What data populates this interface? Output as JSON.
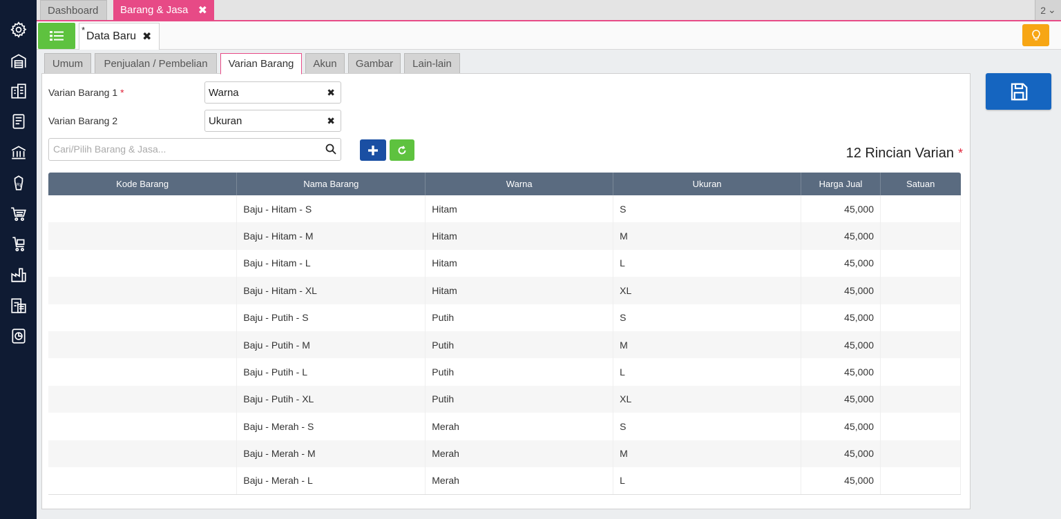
{
  "top_tabs": [
    {
      "label": "Dashboard"
    },
    {
      "label": "Barang & Jasa",
      "close": "✖"
    }
  ],
  "window_counter": {
    "label": "2",
    "chevron": "⌄"
  },
  "doc_tab": {
    "marker": "*",
    "label": "Data Baru",
    "close": "✖"
  },
  "form_tabs": [
    "Umum",
    "Penjualan / Pembelian",
    "Varian Barang",
    "Akun",
    "Gambar",
    "Lain-lain"
  ],
  "variant1": {
    "label": "Varian Barang 1",
    "required": "*",
    "value": "Warna",
    "clear": "✖"
  },
  "variant2": {
    "label": "Varian Barang 2",
    "value": "Ukuran",
    "clear": "✖"
  },
  "search": {
    "placeholder": "Cari/Pilih Barang & Jasa..."
  },
  "variant_count": {
    "label": "12 Rincian Varian",
    "required": "*"
  },
  "table": {
    "columns": [
      "Kode Barang",
      "Nama Barang",
      "Warna",
      "Ukuran",
      "Harga Jual",
      "Satuan"
    ],
    "rows": [
      [
        "",
        "Baju - Hitam - S",
        "Hitam",
        "S",
        "45,000",
        ""
      ],
      [
        "",
        "Baju - Hitam - M",
        "Hitam",
        "M",
        "45,000",
        ""
      ],
      [
        "",
        "Baju - Hitam - L",
        "Hitam",
        "L",
        "45,000",
        ""
      ],
      [
        "",
        "Baju - Hitam - XL",
        "Hitam",
        "XL",
        "45,000",
        ""
      ],
      [
        "",
        "Baju - Putih - S",
        "Putih",
        "S",
        "45,000",
        ""
      ],
      [
        "",
        "Baju - Putih - M",
        "Putih",
        "M",
        "45,000",
        ""
      ],
      [
        "",
        "Baju - Putih - L",
        "Putih",
        "L",
        "45,000",
        ""
      ],
      [
        "",
        "Baju - Putih - XL",
        "Putih",
        "XL",
        "45,000",
        ""
      ],
      [
        "",
        "Baju - Merah - S",
        "Merah",
        "S",
        "45,000",
        ""
      ],
      [
        "",
        "Baju - Merah - M",
        "Merah",
        "M",
        "45,000",
        ""
      ],
      [
        "",
        "Baju - Merah - L",
        "Merah",
        "L",
        "45,000",
        ""
      ]
    ]
  },
  "colors": {
    "sidebar": "#0f1b33",
    "accent_pink": "#e74a86",
    "green": "#5ec23f",
    "blue": "#1565c0",
    "orange": "#f7a614",
    "table_header": "#5a6b80"
  },
  "sidebar_icons": [
    "gear-icon",
    "warehouse-icon",
    "building-icon",
    "ledger-icon",
    "bank-icon",
    "receivable-icon",
    "cart-icon",
    "purchase-icon",
    "factory-icon",
    "tax-icon",
    "report-icon"
  ]
}
